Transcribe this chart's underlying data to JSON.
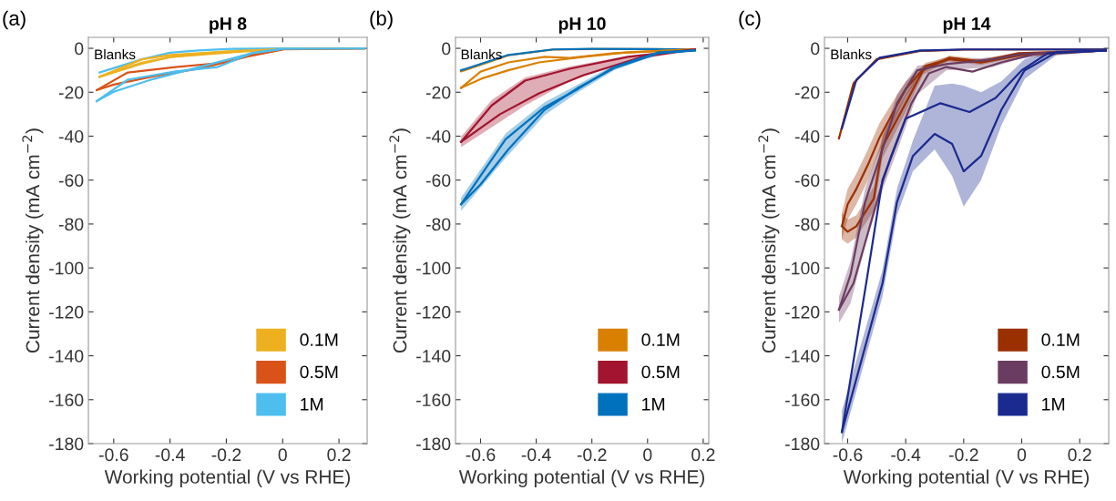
{
  "chart_data": [
    {
      "type": "line",
      "title": "pH 8",
      "xlabel": "Working potential (V vs RHE)",
      "ylabel": "Current density (mA cm$^{−2}$)",
      "xlim": [
        -0.69,
        0.3
      ],
      "ylim": [
        -180,
        5
      ],
      "xticks": [
        -0.6,
        -0.4,
        -0.2,
        0,
        0.2
      ],
      "yticks": [
        -180,
        -160,
        -140,
        -120,
        -100,
        -80,
        -60,
        -40,
        -20,
        0
      ],
      "grid": false,
      "legend": "bottom right",
      "annotations": [
        "(a)",
        "Blanks"
      ],
      "series": [
        {
          "color": "#edb120",
          "x": [
            -0.65,
            -0.5,
            -0.4,
            -0.3,
            -0.15,
            0,
            0.29
          ],
          "values": [
            -13,
            -7,
            -4,
            -2.5,
            -1,
            -0.3,
            0
          ]
        },
        {
          "color": "#4dbeee",
          "x": [
            -0.65,
            -0.5,
            -0.4,
            -0.3,
            -0.2,
            0,
            0.29
          ],
          "values": [
            -11,
            -5,
            -2,
            -1,
            -0.3,
            0,
            0
          ]
        },
        {
          "name": "0.1M",
          "color": "#edb120",
          "x": [
            -0.65,
            -0.5,
            -0.4,
            -0.2,
            0,
            0.29
          ],
          "values": [
            -13,
            -6.5,
            -4,
            -2,
            -0.3,
            0
          ]
        },
        {
          "color": "#edb120",
          "x": [
            -0.65,
            -0.5,
            -0.4,
            -0.2,
            0
          ],
          "values": [
            -13,
            -5,
            -3,
            -1.5,
            -0.3
          ]
        },
        {
          "name": "0.5M",
          "color": "#d95319",
          "x": [
            -0.66,
            -0.55,
            -0.38,
            -0.2,
            -0.11,
            0,
            0.29
          ],
          "values": [
            -19,
            -11,
            -8.5,
            -6.4,
            -3,
            -0.5,
            0
          ]
        },
        {
          "color": "#d95319",
          "x": [
            -0.66,
            -0.6,
            -0.46,
            -0.3,
            -0.23,
            -0.13,
            0
          ],
          "values": [
            -19,
            -16.5,
            -12.8,
            -9.3,
            -7.2,
            -3.9,
            -0.5
          ]
        },
        {
          "name": "1M",
          "color": "#4dbeee",
          "x": [
            -0.66,
            -0.55,
            -0.38,
            -0.23,
            -0.11,
            0,
            0.29
          ],
          "values": [
            -24,
            -14.3,
            -10.5,
            -8.5,
            -2.2,
            -0.2,
            0
          ]
        },
        {
          "color": "#4dbeee",
          "x": [
            -0.66,
            -0.6,
            -0.46,
            -0.25,
            -0.11,
            0
          ],
          "values": [
            -24,
            -19.8,
            -14,
            -7,
            -2.2,
            -0.2
          ]
        }
      ]
    },
    {
      "type": "line",
      "title": "pH 10",
      "xlabel": "Working potential (V vs RHE)",
      "ylabel": "Current density (mA cm$^{−2}$)",
      "xlim": [
        -0.69,
        0.22
      ],
      "ylim": [
        -180,
        5
      ],
      "xticks": [
        -0.6,
        -0.4,
        -0.2,
        0,
        0.2
      ],
      "yticks": [
        -180,
        -160,
        -140,
        -120,
        -100,
        -80,
        -60,
        -40,
        -20,
        0
      ],
      "grid": false,
      "legend": "bottom right",
      "annotations": [
        "(b)",
        "Blanks"
      ],
      "series": [
        {
          "color": "#d98000",
          "x": [
            -0.67,
            -0.5,
            -0.34,
            -0.2,
            0,
            0.17
          ],
          "values": [
            -10.5,
            -3.2,
            -0.6,
            -0.3,
            -0.3,
            -0.5
          ]
        },
        {
          "color": "#0072bd",
          "x": [
            -0.67,
            -0.5,
            -0.34,
            -0.2,
            0,
            0.17
          ],
          "values": [
            -10,
            -3,
            -0.5,
            -0.2,
            -0.3,
            -0.5
          ]
        },
        {
          "name": "0.1M",
          "color": "#d98000",
          "x": [
            -0.67,
            -0.6,
            -0.5,
            -0.37,
            -0.28,
            -0.12,
            0.17
          ],
          "values": [
            -18,
            -10.6,
            -6.4,
            -3.9,
            -4.4,
            -2.2,
            -0.5
          ]
        },
        {
          "color": "#d98000",
          "x": [
            -0.67,
            -0.59,
            -0.5,
            -0.39,
            -0.23,
            -0.07,
            0.17
          ],
          "values": [
            -18,
            -13.5,
            -10,
            -6.4,
            -3.9,
            -1.8,
            -0.5
          ]
        },
        {
          "name": "0.5M",
          "color": "#a2142f",
          "x": [
            -0.67,
            -0.56,
            -0.44,
            -0.28,
            -0.07,
            0.17
          ],
          "values": [
            -42.6,
            -26,
            -14.7,
            -9.3,
            -3.9,
            -0.5
          ],
          "lower": [
            -45,
            -36,
            -26,
            -15,
            -6,
            -0.7
          ],
          "upper": [
            -40.2,
            -23.5,
            -13.2,
            -8.3,
            -3.4,
            -0.3
          ]
        },
        {
          "color": "#a2142f",
          "x": [
            -0.67,
            -0.53,
            -0.39,
            -0.23,
            -0.02,
            0.17
          ],
          "values": [
            -42.6,
            -30,
            -20.5,
            -12.2,
            -3.9,
            -0.5
          ]
        },
        {
          "name": "1M",
          "color": "#0072bd",
          "x": [
            -0.67,
            -0.51,
            -0.37,
            -0.25,
            -0.12,
            0.04,
            0.17
          ],
          "values": [
            -71,
            -41.4,
            -26.8,
            -18.5,
            -8.5,
            -1.8,
            -1
          ],
          "lower": [
            -74,
            -50,
            -30.5,
            -20,
            -10,
            -2.7,
            -1.2
          ],
          "upper": [
            -68,
            -38.8,
            -24.6,
            -16.5,
            -7.5,
            -1.3,
            -0.8
          ]
        },
        {
          "color": "#0072bd",
          "x": [
            -0.67,
            -0.6,
            -0.5,
            -0.37,
            -0.25,
            -0.12,
            0.04,
            0.17
          ],
          "values": [
            -71,
            -62,
            -46,
            -28,
            -18,
            -9,
            -2.2,
            -1
          ]
        }
      ]
    },
    {
      "type": "line",
      "title": "pH 14",
      "xlabel": "Working potential (V vs RHE)",
      "ylabel": "Current density (mA cm$^{−2}$)",
      "xlim": [
        -0.68,
        0.3
      ],
      "ylim": [
        -180,
        5
      ],
      "xticks": [
        -0.6,
        -0.4,
        -0.2,
        0,
        0.2
      ],
      "yticks": [
        -180,
        -160,
        -140,
        -120,
        -100,
        -80,
        -60,
        -40,
        -20,
        0
      ],
      "grid": false,
      "legend": "bottom right",
      "annotations": [
        "(c)",
        "Blanks"
      ],
      "series": [
        {
          "color": "#9a3000",
          "x": [
            -0.63,
            -0.58,
            -0.5,
            -0.35,
            -0.2,
            0.29
          ],
          "values": [
            -41,
            -16,
            -5,
            -1.2,
            -0.6,
            -0.5
          ]
        },
        {
          "color": "#1a2a8f",
          "x": [
            -0.62,
            -0.57,
            -0.49,
            -0.35,
            -0.2,
            0.29
          ],
          "values": [
            -36.5,
            -14.3,
            -4.3,
            -1,
            -0.5,
            -0.5
          ]
        },
        {
          "name": "0.1M",
          "color": "#9a3000",
          "x": [
            -0.62,
            -0.6,
            -0.57,
            -0.53,
            -0.49,
            -0.4,
            -0.33,
            -0.25,
            -0.14,
            0,
            0.29
          ],
          "values": [
            -81,
            -71,
            -64,
            -53,
            -40.6,
            -18.5,
            -8,
            -5,
            -6.5,
            -3,
            -1
          ],
          "lower": [
            -87,
            -78,
            -71,
            -60,
            -47,
            -22,
            -9.5,
            -6,
            -7.5,
            -3.6,
            -1.3
          ],
          "upper": [
            -75,
            -64,
            -57,
            -46,
            -34,
            -15,
            -6.5,
            -4,
            -5.5,
            -2.4,
            -0.7
          ]
        },
        {
          "color": "#9a3000",
          "x": [
            -0.62,
            -0.6,
            -0.57,
            -0.51,
            -0.48,
            -0.4,
            -0.34,
            -0.25,
            -0.14,
            -0.01,
            0.29
          ],
          "values": [
            -81,
            -83.5,
            -81,
            -68.5,
            -44.8,
            -25,
            -10,
            -4.3,
            -5.9,
            -2.2,
            -1
          ],
          "lower": [
            -87,
            -89,
            -86,
            -74,
            -50,
            -29,
            -12,
            -5.3,
            -6.9,
            -2.7,
            -1.3
          ],
          "upper": [
            -75,
            -78,
            -76,
            -63,
            -39.6,
            -21,
            -8,
            -3.3,
            -4.9,
            -1.7,
            -0.7
          ]
        },
        {
          "name": "0.5M",
          "color": "#6b3c61",
          "x": [
            -0.63,
            -0.59,
            -0.54,
            -0.49,
            -0.43,
            -0.36,
            -0.26,
            -0.1,
            0,
            0.29
          ],
          "values": [
            -119,
            -103,
            -70,
            -50,
            -25,
            -10,
            -7.2,
            -5,
            -2.5,
            -1
          ],
          "lower": [
            -125,
            -116,
            -90,
            -68,
            -47,
            -21,
            -10,
            -8.5,
            -4.5,
            -1.3
          ],
          "upper": [
            -113,
            -97,
            -64,
            -45,
            -21,
            -8,
            -5.9,
            -4,
            -2,
            -0.7
          ]
        },
        {
          "color": "#6b3c61",
          "x": [
            -0.63,
            -0.58,
            -0.48,
            -0.45,
            -0.38,
            -0.32,
            -0.26,
            -0.17,
            -0.07,
            0.06,
            0.29
          ],
          "values": [
            -119,
            -107,
            -61,
            -49,
            -25,
            -11.4,
            -8.5,
            -10.6,
            -6.4,
            -2.2,
            -1
          ]
        },
        {
          "name": "1M",
          "color": "#1a2a8f",
          "x": [
            -0.62,
            -0.535,
            -0.48,
            -0.4,
            -0.28,
            -0.18,
            -0.09,
            0,
            0.09,
            0.29
          ],
          "values": [
            -174.7,
            -106,
            -60,
            -32,
            -25,
            -29,
            -22.6,
            -10,
            -2.2,
            -1
          ]
        },
        {
          "color": "#1a2a8f",
          "x": [
            -0.62,
            -0.48,
            -0.43,
            -0.375,
            -0.3,
            -0.24,
            -0.2,
            -0.14,
            -0.07,
            0.01,
            0.12,
            0.29
          ],
          "values": [
            -174.7,
            -107,
            -70,
            -49,
            -39,
            -43.5,
            -56,
            -49,
            -28,
            -10,
            -1.8,
            -1
          ],
          "lower": [
            -180,
            -113,
            -76,
            -56,
            -46,
            -58,
            -72,
            -60,
            -35,
            -14,
            -3,
            -1.2
          ],
          "upper": [
            -165,
            -101,
            -64,
            -42,
            -17,
            -16,
            -17,
            -20,
            -15,
            -5,
            -0.8,
            -0.8
          ]
        }
      ]
    }
  ]
}
